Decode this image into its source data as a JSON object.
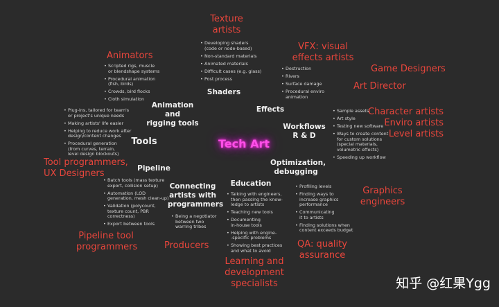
{
  "center": "Tech Art",
  "watermark": "知乎 @红果Ygg",
  "roles": {
    "texture_artists": "Texture\nartists",
    "animators": "Animators",
    "vfx": "VFX: visual\neffects artists",
    "game_designers": "Game Designers",
    "art_director": "Art Director",
    "character_artists": "Character artists\nEnviro artists\nLevel artists",
    "tool_programmers": "Tool programmers,\nUX Designers",
    "graphics_engineers": "Graphics\nengineers",
    "pipeline_tool_programmers": "Pipeline tool\nprogrammers",
    "producers": "Producers",
    "qa": "QA: quality\nassurance",
    "learning_specialists": "Learning and\ndevelopment\nspecialists"
  },
  "categories": {
    "shaders": "Shaders",
    "animation_rigging": "Animation and\nrigging tools",
    "effects": "Effects",
    "workflows": "Workflows\nR & D",
    "tools": "Tools",
    "optimization": "Optimization,\ndebugging",
    "pipeline": "Pipeline",
    "connecting": "Connecting\nartists with\nprogrammers",
    "education": "Education"
  },
  "bullets": {
    "shaders": [
      "Developing shaders\n(code or node-based)",
      "Non-standard materials",
      "Animated materials",
      "Difficult cases (e.g. glass)",
      "Post process"
    ],
    "animation": [
      "Scripted rigs, muscle\nor blendshape systems",
      "Procedural animation\n(fish, birds)",
      "Crowds, bird flocks",
      "Cloth simulation"
    ],
    "effects": [
      "Destruction",
      "Rivers",
      "Surface damage",
      "Procedural enviro\nanimation"
    ],
    "workflows": [
      "Sample assets",
      "Art style",
      "Testing new software",
      "Ways to create content\nfor custom solutions\n(special materials,\nvolumetric effects)",
      "Speeding up workflow"
    ],
    "tools": [
      "Plug-ins, tailored for team's\nor project's unique needs",
      "Making artists' life easier",
      "Helping to reduce work after\ndesign/content changes",
      "Procedural generation\n(from curves, terrain,\nlevel design blockouts)"
    ],
    "pipeline": [
      "Batch tools (mass texture\nexport, collision setup)",
      "Automation (LOD\ngeneration, mesh clean-up)",
      "Validation (polycount,\ntexture count, PBR\ncorrectness)",
      "Export between tools"
    ],
    "connecting": [
      "Being a negotiator\nbetween two\nwarring tribes"
    ],
    "education": [
      "Talking with engineers,\nthen passing the know-\nledge to artists",
      "Teaching new tools",
      "Documenting\nin-house tools",
      "Helping with engine-\n-specific problems",
      "Showing best practices\nand what to avoid"
    ],
    "optimization": [
      "Profiling levels",
      "Finding ways to\nincrease graphics\nperformance",
      "Communicating\nit to artists",
      "Finding solutions when\ncontent exceeds budget"
    ]
  }
}
